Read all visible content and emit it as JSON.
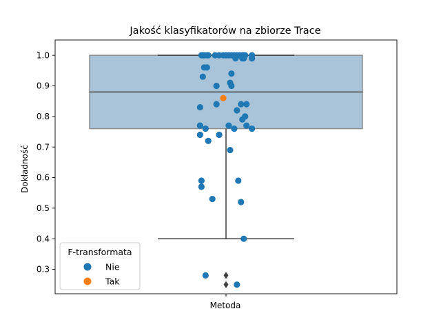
{
  "chart_data": {
    "type": "box",
    "title": "Jakość klasyfikatorów na zbiorze Trace",
    "xlabel": "Metoda",
    "ylabel": "Dokładność",
    "categories": [
      "Metoda"
    ],
    "ylim": [
      0.22,
      1.05
    ],
    "yticks": [
      0.3,
      0.4,
      0.5,
      0.6,
      0.7,
      0.8,
      0.9,
      1.0
    ],
    "grid": false,
    "legend_position": "lower-left",
    "legend_title": "F-transformata",
    "box": {
      "q1": 0.76,
      "median": 0.88,
      "q3": 1.0,
      "whisker_low": 0.4,
      "whisker_high": 1.0,
      "outliers": [
        0.28,
        0.25
      ],
      "color": "#a9c4d8"
    },
    "series": [
      {
        "name": "Nie",
        "color": "#1f77b4",
        "values": [
          1.0,
          1.0,
          1.0,
          1.0,
          1.0,
          1.0,
          1.0,
          1.0,
          1.0,
          1.0,
          1.0,
          1.0,
          1.0,
          1.0,
          1.0,
          1.0,
          1.0,
          1.0,
          0.99,
          0.99,
          0.99,
          0.99,
          0.96,
          0.96,
          0.94,
          0.93,
          0.91,
          0.9,
          0.9,
          0.84,
          0.84,
          0.84,
          0.83,
          0.82,
          0.8,
          0.79,
          0.77,
          0.77,
          0.77,
          0.76,
          0.76,
          0.76,
          0.74,
          0.74,
          0.72,
          0.69,
          0.59,
          0.59,
          0.57,
          0.53,
          0.52,
          0.4,
          0.28,
          0.25
        ],
        "jitter": [
          -0.18,
          -0.17,
          -0.16,
          -0.14,
          -0.13,
          -0.08,
          -0.05,
          -0.02,
          0.0,
          0.02,
          0.04,
          0.06,
          0.08,
          0.1,
          0.12,
          0.13,
          0.14,
          0.19,
          0.07,
          0.12,
          0.13,
          0.19,
          -0.16,
          -0.14,
          0.04,
          -0.17,
          0.03,
          -0.07,
          0.04,
          -0.07,
          0.11,
          0.15,
          -0.19,
          0.08,
          0.14,
          0.12,
          -0.19,
          0.02,
          0.15,
          -0.15,
          0.06,
          0.19,
          -0.19,
          -0.05,
          -0.13,
          0.03,
          -0.18,
          0.09,
          -0.18,
          -0.1,
          0.11,
          0.13,
          -0.15,
          0.08
        ]
      },
      {
        "name": "Tak",
        "color": "#ff7f0e",
        "values": [
          0.86
        ],
        "jitter": [
          -0.02
        ]
      }
    ]
  }
}
